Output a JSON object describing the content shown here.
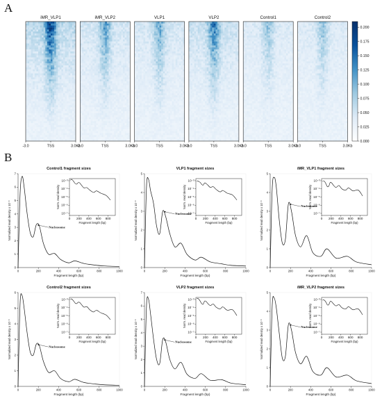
{
  "panel_a": {
    "letter": "A",
    "heatmaps": [
      {
        "title": "iMR_VLP1",
        "intensity": 1.0
      },
      {
        "title": "iMR_VLP2",
        "intensity": 0.6
      },
      {
        "title": "VLP1",
        "intensity": 0.55
      },
      {
        "title": "VLP2",
        "intensity": 0.75
      },
      {
        "title": "Control1",
        "intensity": 0.42
      },
      {
        "title": "Control2",
        "intensity": 0.4
      }
    ],
    "x_ticks": [
      "-3.0",
      "TSS",
      "3.0Kb"
    ],
    "colorbar": {
      "ticks": [
        "0.200",
        "0.175",
        "0.150",
        "0.125",
        "0.100",
        "0.075",
        "0.050",
        "0.025",
        "0.000"
      ],
      "min": 0.0,
      "max": 0.21,
      "colors": [
        "#ffffff",
        "#08306b"
      ]
    }
  },
  "panel_b": {
    "letter": "B",
    "nucleosome_label": "Nucleosome",
    "x_label": "Fragment length (bp)",
    "y_label": "Normalized read density x 10⁻³",
    "inset_y_label": "Norm. read density",
    "inset_x_label": "Fragment length (bp)",
    "x_ticks": [
      "0",
      "200",
      "400",
      "600",
      "800",
      "1000"
    ],
    "inset_x_ticks": [
      "0",
      "200",
      "400",
      "600",
      "800"
    ],
    "inset_y_ticks": [
      "10⁻³",
      "10⁻⁴",
      "10⁻⁵",
      "10⁻⁶",
      "10⁻⁷"
    ]
  },
  "chart_data": [
    {
      "type": "line",
      "title": "Control1 fragment sizes",
      "xlabel": "Fragment length (bp)",
      "ylabel": "Normalized read density x 10⁻³",
      "xlim": [
        0,
        1000
      ],
      "ylim": [
        0,
        7
      ],
      "yticks": [
        0,
        1,
        2,
        3,
        4,
        5,
        6,
        7
      ],
      "x": [
        0,
        20,
        40,
        60,
        90,
        120,
        150,
        180,
        210,
        250,
        300,
        360,
        420,
        500,
        560,
        650,
        760,
        850,
        1000
      ],
      "y": [
        0,
        5.5,
        6.8,
        6.0,
        4.0,
        2.6,
        2.3,
        3.2,
        3.1,
        1.8,
        1.0,
        1.05,
        0.6,
        0.35,
        0.5,
        0.3,
        0.18,
        0.12,
        0.08
      ]
    },
    {
      "type": "line",
      "title": "VLP1 fragment sizes",
      "xlabel": "Fragment length (bp)",
      "ylabel": "Normalized read density x 10⁻³",
      "xlim": [
        0,
        1000
      ],
      "ylim": [
        0,
        5
      ],
      "yticks": [
        0,
        1,
        2,
        3,
        4,
        5
      ],
      "x": [
        0,
        20,
        40,
        60,
        90,
        120,
        150,
        180,
        210,
        250,
        300,
        360,
        420,
        500,
        560,
        650,
        760,
        850,
        1000
      ],
      "y": [
        0,
        4.3,
        4.7,
        4.1,
        3.4,
        2.2,
        1.8,
        3.0,
        2.7,
        1.8,
        1.1,
        1.3,
        0.7,
        0.4,
        0.55,
        0.3,
        0.2,
        0.12,
        0.08
      ]
    },
    {
      "type": "line",
      "title": "iMR_VLP1 fragment sizes",
      "xlabel": "Fragment length (bp)",
      "ylabel": "Normalized read density x 10⁻³",
      "xlim": [
        0,
        1000
      ],
      "ylim": [
        0,
        5
      ],
      "yticks": [
        0,
        1,
        2,
        3,
        4,
        5
      ],
      "x": [
        0,
        20,
        40,
        60,
        90,
        120,
        150,
        180,
        210,
        250,
        300,
        360,
        420,
        500,
        560,
        650,
        760,
        850,
        1000
      ],
      "y": [
        0,
        4.2,
        4.8,
        4.3,
        2.5,
        1.3,
        1.5,
        3.4,
        3.0,
        1.7,
        1.1,
        1.7,
        0.8,
        0.6,
        1.0,
        0.5,
        0.6,
        0.3,
        0.15
      ]
    },
    {
      "type": "line",
      "title": "Control2 fragment sizes",
      "xlabel": "Fragment length (bp)",
      "ylabel": "Normalized read density x 10⁻³",
      "xlim": [
        0,
        1000
      ],
      "ylim": [
        0,
        6
      ],
      "yticks": [
        0,
        1,
        2,
        3,
        4,
        5,
        6
      ],
      "x": [
        0,
        20,
        40,
        60,
        90,
        120,
        150,
        180,
        210,
        250,
        300,
        360,
        420,
        500,
        560,
        650,
        760,
        850,
        1000
      ],
      "y": [
        0,
        5.3,
        5.8,
        5.0,
        3.4,
        2.2,
        2.0,
        2.7,
        2.6,
        1.6,
        0.9,
        1.0,
        0.5,
        0.3,
        0.45,
        0.25,
        0.15,
        0.1,
        0.07
      ]
    },
    {
      "type": "line",
      "title": "VLP2 fragment sizes",
      "xlabel": "Fragment length (bp)",
      "ylabel": "Normalized read density x 10⁻³",
      "xlim": [
        0,
        1000
      ],
      "ylim": [
        0,
        7
      ],
      "yticks": [
        0,
        1,
        2,
        3,
        4,
        5,
        6,
        7
      ],
      "x": [
        0,
        20,
        40,
        60,
        90,
        120,
        150,
        180,
        210,
        250,
        300,
        360,
        420,
        500,
        560,
        650,
        760,
        850,
        1000
      ],
      "y": [
        0,
        6.0,
        6.5,
        5.4,
        3.5,
        2.0,
        1.7,
        3.5,
        3.3,
        2.0,
        1.3,
        1.8,
        0.9,
        0.6,
        0.95,
        0.45,
        0.5,
        0.25,
        0.12
      ]
    },
    {
      "type": "line",
      "title": "iMR_VLP2 fragment sizes",
      "xlabel": "Fragment length (bp)",
      "ylabel": "Normalized read density x 10⁻³",
      "xlim": [
        0,
        1000
      ],
      "ylim": [
        0,
        5
      ],
      "yticks": [
        0,
        1,
        2,
        3,
        4,
        5
      ],
      "x": [
        0,
        20,
        40,
        60,
        90,
        120,
        150,
        180,
        210,
        250,
        300,
        360,
        420,
        500,
        560,
        650,
        760,
        850,
        1000
      ],
      "y": [
        0,
        4.3,
        4.7,
        4.2,
        2.8,
        1.5,
        1.6,
        3.3,
        3.0,
        1.8,
        1.2,
        1.6,
        0.8,
        0.6,
        1.0,
        0.5,
        0.6,
        0.3,
        0.15
      ]
    }
  ]
}
